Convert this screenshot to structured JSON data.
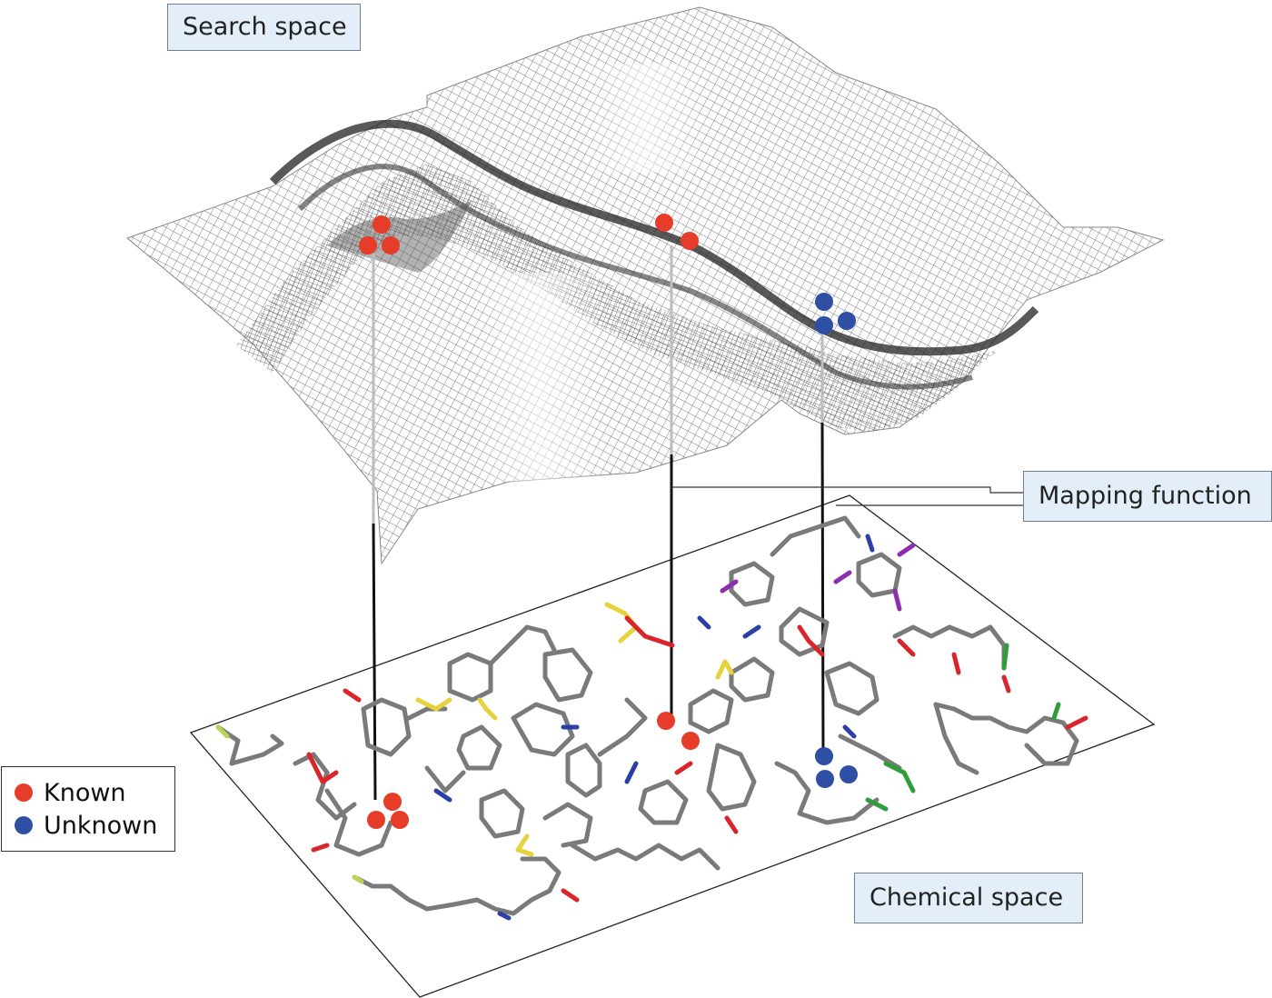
{
  "labels": {
    "search_space": "Search space",
    "mapping_function": "Mapping function",
    "chemical_space": "Chemical space"
  },
  "legend": {
    "items": [
      {
        "label": "Known",
        "color": "#e63c2a"
      },
      {
        "label": "Unknown",
        "color": "#2e4fa3"
      }
    ]
  },
  "colors": {
    "known": "#e63c2a",
    "unknown": "#2e4fa3",
    "label_fill": "#e4eef8",
    "mesh": "#6a6a6a",
    "bond_carbon": "#7a7a7a",
    "oxygen": "#d9262c",
    "nitrogen": "#2b3fa8",
    "sulfur": "#e6d23a",
    "halogen": "#8b2fb0",
    "chlorine": "#2f9e3a",
    "fluorine": "#b6d65a"
  }
}
